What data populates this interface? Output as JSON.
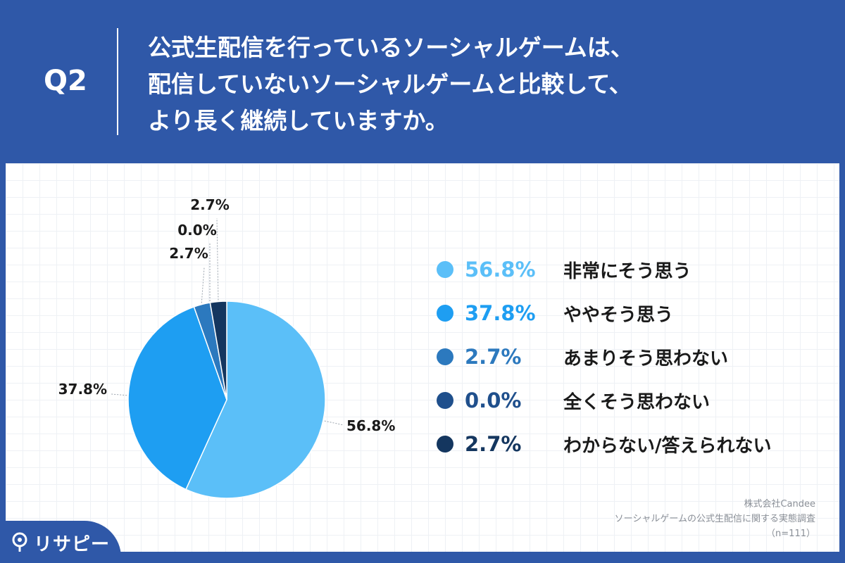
{
  "header": {
    "q_label": "Q2",
    "question_lines": [
      "公式生配信を行っているソーシャルゲームは、",
      "配信していないソーシャルゲームと比較して、",
      "より長く継続していますか。"
    ]
  },
  "chart_data": {
    "type": "pie",
    "categories": [
      "非常にそう思う",
      "ややそう思う",
      "あまりそう思わない",
      "全くそう思わない",
      "わからない/答えられない"
    ],
    "values": [
      56.8,
      37.8,
      2.7,
      0.0,
      2.7
    ],
    "value_labels": [
      "56.8%",
      "37.8%",
      "2.7%",
      "0.0%",
      "2.7%"
    ],
    "colors": [
      "#5bbff8",
      "#1e9ef2",
      "#2c79be",
      "#1f4f8c",
      "#14365f"
    ],
    "legend_position": "right",
    "start_angle_deg": 0,
    "direction": "clockwise"
  },
  "legend": [
    {
      "value": "56.8%",
      "label": "非常にそう思う",
      "color": "#5bbff8"
    },
    {
      "value": "37.8%",
      "label": "ややそう思う",
      "color": "#1e9ef2"
    },
    {
      "value": "2.7%",
      "label": "あまりそう思わない",
      "color": "#2c79be"
    },
    {
      "value": "0.0%",
      "label": "全くそう思わない",
      "color": "#1f4f8c"
    },
    {
      "value": "2.7%",
      "label": "わからない/答えられない",
      "color": "#14365f"
    }
  ],
  "source": {
    "lines": [
      "株式会社Candee",
      "ソーシャルゲームの公式生配信に関する実態調査",
      "（n=111）"
    ]
  },
  "brand": {
    "name": "リサピー",
    "icon": "pin-icon",
    "background": "#2f58a8"
  },
  "colors": {
    "background": "#2f58a8",
    "panel": "#ffffff"
  }
}
